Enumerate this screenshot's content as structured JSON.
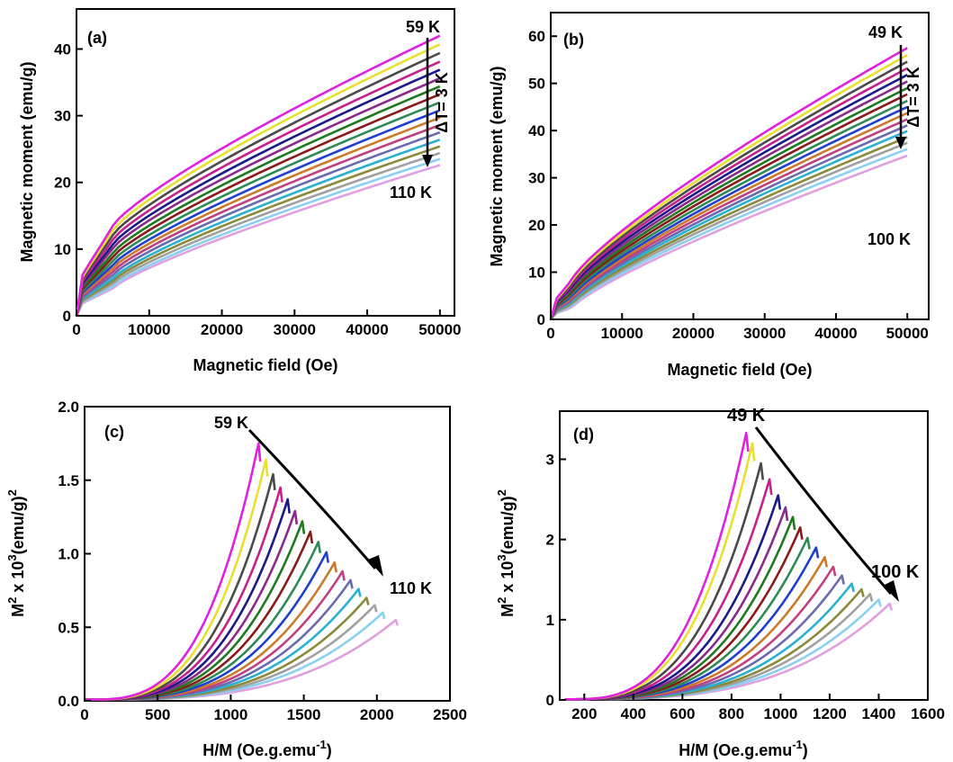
{
  "chart_data": [
    {
      "type": "line",
      "panel_label": "(a)",
      "xlabel": "Magnetic field (Oe)",
      "ylabel": "Magnetic moment (emu/g)",
      "xlim": [
        0,
        52000
      ],
      "ylim": [
        0,
        46
      ],
      "xticks": [
        0,
        10000,
        20000,
        30000,
        40000,
        50000
      ],
      "yticks": [
        0,
        10,
        20,
        30,
        40
      ],
      "top_label": "59 K",
      "bottom_label": "110 K",
      "delta_label": "ΔT= 3 K",
      "curve_count": 18,
      "end_values": [
        42,
        40.7,
        39.4,
        38.1,
        36.9,
        35.6,
        34.4,
        33.2,
        32,
        30.8,
        29.7,
        28.6,
        27.5,
        26.4,
        25.4,
        24.4,
        23.5,
        22.6
      ],
      "knee_values": [
        13.5,
        12.8,
        12.1,
        11.4,
        10.7,
        10.1,
        9.4,
        8.8,
        8.2,
        7.6,
        7.1,
        6.6,
        6.1,
        5.6,
        5.2,
        4.8,
        4.4,
        4.1
      ],
      "knee_field": 5000,
      "x_max": 50000
    },
    {
      "type": "line",
      "panel_label": "(b)",
      "xlabel": "Magnetic field (Oe)",
      "ylabel": "Magnetic moment (emu/g)",
      "xlim": [
        0,
        53000
      ],
      "ylim": [
        0,
        65
      ],
      "xticks": [
        0,
        10000,
        20000,
        30000,
        40000,
        50000
      ],
      "yticks": [
        0,
        10,
        20,
        30,
        40,
        50,
        60
      ],
      "top_label": "49 K",
      "bottom_label": "100 K",
      "delta_label": "ΔT= 3 K",
      "curve_count": 18,
      "end_values": [
        57.5,
        56,
        54.6,
        53.2,
        51.8,
        50.4,
        49,
        47.7,
        46.3,
        45,
        43.7,
        42.4,
        41.1,
        39.9,
        38.6,
        37.4,
        36.1,
        34.7
      ],
      "knee_values": [
        8.5,
        8.1,
        7.7,
        7.3,
        6.9,
        6.5,
        6.1,
        5.7,
        5.3,
        4.9,
        4.6,
        4.3,
        4,
        3.7,
        3.4,
        3.1,
        2.8,
        2.5
      ],
      "knee_field": 3000,
      "x_max": 50000
    },
    {
      "type": "line",
      "panel_label": "(c)",
      "xlabel": "H/M (Oe.g.emu-1)",
      "ylabel": "M2 x 103 (emu/g)2",
      "xlim": [
        0,
        2500
      ],
      "ylim": [
        0,
        2.0
      ],
      "xticks": [
        0,
        500,
        1000,
        1500,
        2000,
        2500
      ],
      "yticks": [
        0.0,
        0.5,
        1.0,
        1.5,
        2.0
      ],
      "top_label": "59 K",
      "bottom_label": "110 K",
      "curve_count": 18,
      "end_x": [
        1190,
        1240,
        1290,
        1340,
        1390,
        1440,
        1490,
        1545,
        1600,
        1655,
        1710,
        1765,
        1820,
        1875,
        1930,
        1985,
        2040,
        2130
      ],
      "end_y": [
        1.75,
        1.64,
        1.54,
        1.45,
        1.37,
        1.29,
        1.22,
        1.15,
        1.08,
        1.01,
        0.94,
        0.88,
        0.82,
        0.76,
        0.7,
        0.65,
        0.6,
        0.55
      ]
    },
    {
      "type": "line",
      "panel_label": "(d)",
      "xlabel": "H/M (Oe.g.emu-1)",
      "ylabel": "M2 x 103 (emu/g)2",
      "xlim": [
        100,
        1600
      ],
      "ylim": [
        0,
        3.6
      ],
      "xticks": [
        200,
        400,
        600,
        800,
        1000,
        1200,
        1400,
        1600
      ],
      "yticks": [
        0,
        1,
        2,
        3
      ],
      "top_label": "49 K",
      "bottom_label": "100 K",
      "curve_count": 18,
      "end_x": [
        860,
        885,
        920,
        955,
        990,
        1020,
        1050,
        1080,
        1110,
        1145,
        1180,
        1215,
        1250,
        1290,
        1330,
        1365,
        1400,
        1445
      ],
      "end_y": [
        3.33,
        3.2,
        2.95,
        2.75,
        2.55,
        2.4,
        2.28,
        2.15,
        2.02,
        1.9,
        1.78,
        1.66,
        1.55,
        1.45,
        1.38,
        1.32,
        1.25,
        1.2
      ]
    }
  ],
  "series_colors": [
    "#e021e0",
    "#e8e02c",
    "#4a4a4a",
    "#c8208a",
    "#1a1a8a",
    "#8b2a8a",
    "#1f7a1f",
    "#8b1a1a",
    "#2e8b57",
    "#1f3fd0",
    "#cc7a2a",
    "#c04080",
    "#6a6ab0",
    "#2ab0d0",
    "#8a8a3a",
    "#a0a0a0",
    "#8ad0f0",
    "#e0a0e0"
  ]
}
